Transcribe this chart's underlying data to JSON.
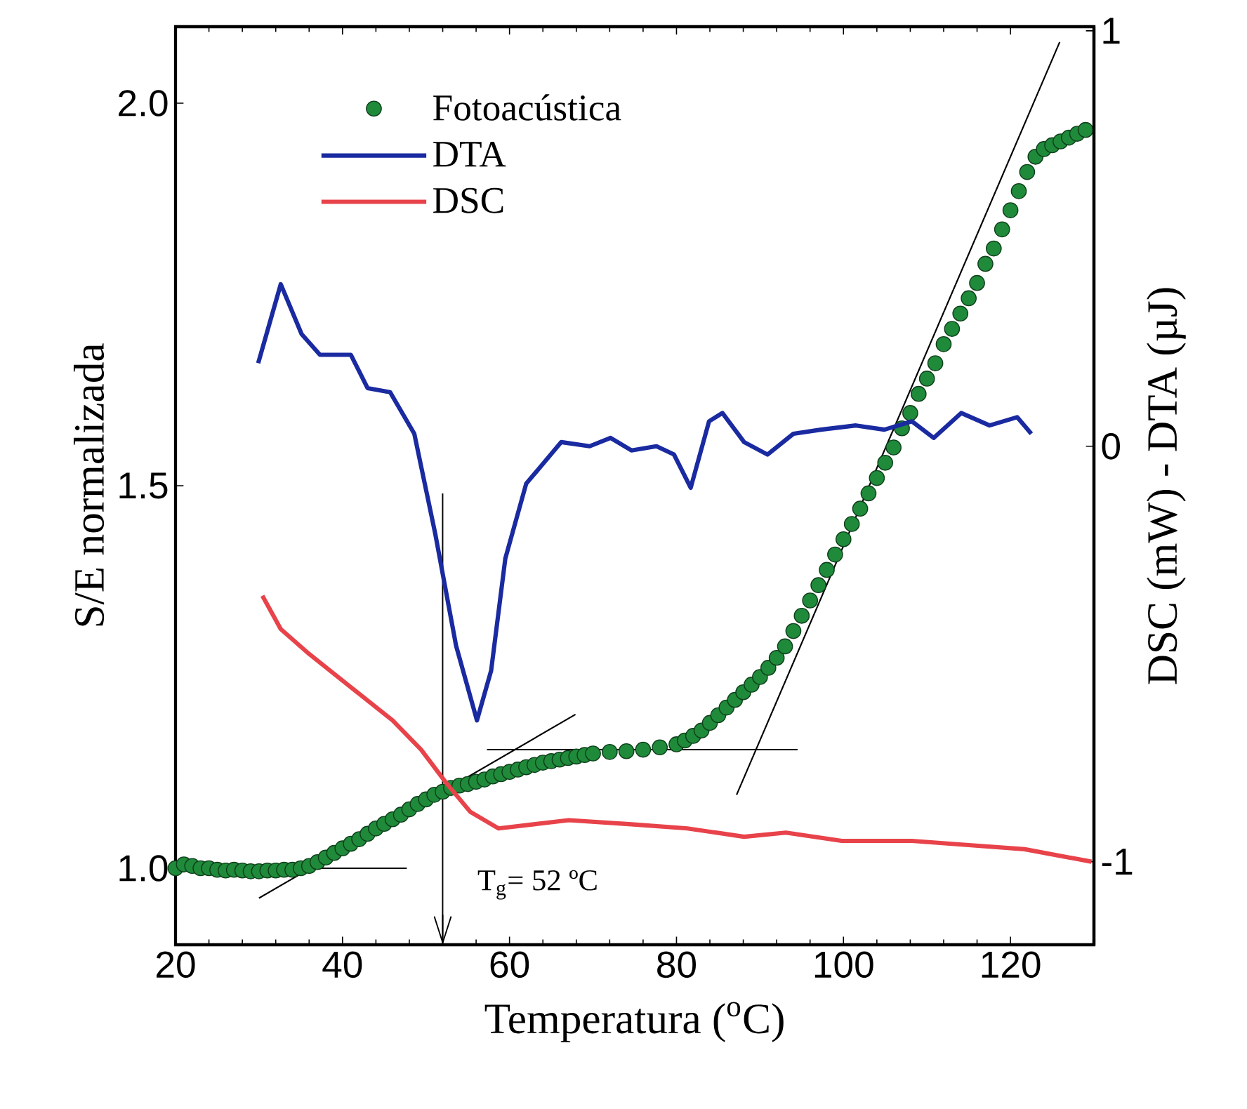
{
  "chart_data": {
    "type": "line",
    "xlabel": "Temperatura ($^{o}$C)",
    "ylabel": "S/E normalizada",
    "y2label": "DSC (mW) - DTA (µJ)",
    "xlim": [
      20,
      130
    ],
    "xticks": [
      20,
      40,
      60,
      80,
      100,
      120
    ],
    "ylim": [
      0.9,
      2.1
    ],
    "yticks": [
      {
        "value": 1.0,
        "label": "1.0"
      },
      {
        "value": 1.5,
        "label": "1.5"
      },
      {
        "value": 2.0,
        "label": "2.0"
      }
    ],
    "y2lim": [
      -1.2,
      1.01
    ],
    "y2ticks": [
      -1,
      0,
      1
    ],
    "legend": "top left",
    "series": [
      {
        "name": "Fotoacústica",
        "type": "scatter",
        "color": "#1f8a3a",
        "x": [
          20,
          21,
          22,
          23,
          24,
          25,
          26,
          27,
          28,
          29,
          30,
          31,
          32,
          33,
          34,
          35,
          36,
          37,
          38,
          39,
          40,
          41,
          42,
          43,
          44,
          45,
          46,
          47,
          48,
          49,
          50,
          51,
          52,
          53,
          54,
          55,
          56,
          57,
          58,
          59,
          60,
          61,
          62,
          63,
          64,
          65,
          66,
          67,
          68,
          69,
          70,
          72,
          74,
          76,
          78,
          80,
          81,
          82,
          83,
          84,
          85,
          86,
          87,
          88,
          89,
          90,
          91,
          92,
          93,
          94,
          95,
          96,
          97,
          98,
          99,
          100,
          101,
          102,
          103,
          104,
          105,
          106,
          107,
          108,
          109,
          110,
          111,
          112,
          113,
          114,
          115,
          116,
          117,
          118,
          119,
          120,
          121,
          122,
          123,
          124,
          125,
          126,
          127,
          128,
          129
        ],
        "values": [
          1.0,
          1.005,
          1.003,
          1.0,
          1.0,
          0.998,
          0.997,
          0.998,
          0.997,
          0.996,
          0.996,
          0.997,
          0.997,
          0.998,
          0.998,
          1.0,
          1.003,
          1.008,
          1.014,
          1.02,
          1.026,
          1.032,
          1.038,
          1.045,
          1.052,
          1.058,
          1.064,
          1.07,
          1.077,
          1.084,
          1.09,
          1.096,
          1.1,
          1.105,
          1.108,
          1.11,
          1.113,
          1.116,
          1.12,
          1.123,
          1.126,
          1.129,
          1.132,
          1.135,
          1.138,
          1.14,
          1.142,
          1.144,
          1.146,
          1.148,
          1.15,
          1.152,
          1.153,
          1.155,
          1.158,
          1.162,
          1.167,
          1.173,
          1.18,
          1.19,
          1.2,
          1.21,
          1.22,
          1.23,
          1.24,
          1.25,
          1.262,
          1.275,
          1.29,
          1.31,
          1.33,
          1.35,
          1.37,
          1.39,
          1.41,
          1.43,
          1.45,
          1.47,
          1.49,
          1.51,
          1.53,
          1.55,
          1.575,
          1.595,
          1.62,
          1.64,
          1.66,
          1.685,
          1.705,
          1.725,
          1.745,
          1.765,
          1.79,
          1.81,
          1.835,
          1.86,
          1.885,
          1.91,
          1.93,
          1.94,
          1.945,
          1.95,
          1.955,
          1.96,
          1.965
        ]
      },
      {
        "name": "DTA",
        "axis": "y2",
        "color": "#1a2aa0",
        "x": [
          29.9,
          32.6,
          35.1,
          37.3,
          41.0,
          43.0,
          45.7,
          48.6,
          51.1,
          53.6,
          56.1,
          57.8,
          59.5,
          62.0,
          66.2,
          69.6,
          72.1,
          74.6,
          77.6,
          79.7,
          81.7,
          83.9,
          85.5,
          88.1,
          90.9,
          94.0,
          97.3,
          101.5,
          104.9,
          108.2,
          110.8,
          114.1,
          117.5,
          120.8,
          122.5
        ],
        "values": [
          0.2,
          0.39,
          0.27,
          0.22,
          0.22,
          0.14,
          0.13,
          0.03,
          -0.21,
          -0.48,
          -0.66,
          -0.54,
          -0.27,
          -0.09,
          0.01,
          0.0,
          0.02,
          -0.01,
          0.0,
          -0.02,
          -0.1,
          0.06,
          0.08,
          0.01,
          -0.02,
          0.03,
          0.04,
          0.05,
          0.04,
          0.06,
          0.02,
          0.08,
          0.05,
          0.07,
          0.03
        ]
      },
      {
        "name": "DSC",
        "axis": "y2",
        "color": "#e8434a",
        "x": [
          30.4,
          32.6,
          36,
          41,
          46,
          49.4,
          52.4,
          55.3,
          58.7,
          62.9,
          67.1,
          74.6,
          81.3,
          88.1,
          93.1,
          99.8,
          108.2,
          115,
          121.7,
          129.7
        ],
        "values": [
          -0.36,
          -0.44,
          -0.5,
          -0.58,
          -0.66,
          -0.73,
          -0.81,
          -0.88,
          -0.92,
          -0.91,
          -0.9,
          -0.91,
          -0.92,
          -0.94,
          -0.93,
          -0.95,
          -0.95,
          -0.96,
          -0.97,
          -1.0
        ]
      },
      {
        "color": "#000000",
        "x": [
          30,
          47.7
        ],
        "values": [
          1.0,
          1.0
        ]
      },
      {
        "color": "#000000",
        "x": [
          30,
          67.9
        ],
        "values": [
          0.961,
          1.201
        ]
      },
      {
        "color": "#000000",
        "x": [
          57.3,
          94.5
        ],
        "values": [
          1.155,
          1.155
        ]
      },
      {
        "color": "#000000",
        "x": [
          87.2,
          125.9
        ],
        "values": [
          1.096,
          2.08
        ]
      },
      {
        "color": "#000000",
        "x": [
          52,
          52
        ],
        "values": [
          1.49,
          0.9
        ]
      }
    ],
    "annotations": [
      {
        "text": "T$_{g}$= 52 ºC",
        "x": 52,
        "y": 0.9
      }
    ]
  }
}
